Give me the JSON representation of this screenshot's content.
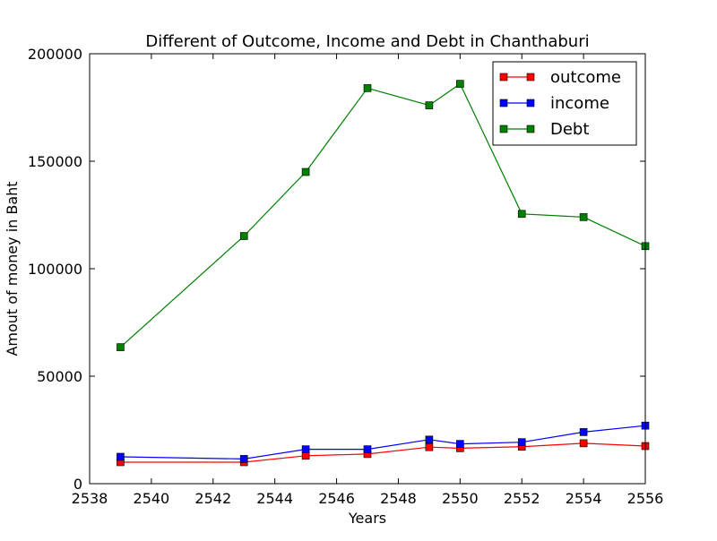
{
  "chart_data": {
    "type": "line",
    "title": "Different of Outcome, Income and Debt in Chanthaburi",
    "xlabel": "Years",
    "ylabel": "Amout of money in Baht",
    "xlim": [
      2538,
      2556
    ],
    "ylim": [
      0,
      200000
    ],
    "xticks": [
      2538,
      2540,
      2542,
      2544,
      2546,
      2548,
      2550,
      2552,
      2554,
      2556
    ],
    "yticks": [
      0,
      50000,
      100000,
      150000,
      200000
    ],
    "grid": false,
    "legend_position": "top-right",
    "x": [
      2539,
      2543,
      2545,
      2547,
      2549,
      2550,
      2552,
      2554,
      2556
    ],
    "series": [
      {
        "name": "outcome",
        "color": "#ff0000",
        "marker": "square",
        "values": [
          10000,
          10000,
          13000,
          13800,
          17000,
          16500,
          17200,
          18800,
          17500
        ]
      },
      {
        "name": "income",
        "color": "#0000ff",
        "marker": "square",
        "values": [
          12500,
          11500,
          16000,
          16000,
          20500,
          18500,
          19300,
          24000,
          27000
        ]
      },
      {
        "name": "Debt",
        "color": "#008000",
        "marker": "square",
        "values": [
          63500,
          115200,
          145000,
          184000,
          176000,
          186000,
          125500,
          124000,
          110500
        ]
      }
    ]
  }
}
